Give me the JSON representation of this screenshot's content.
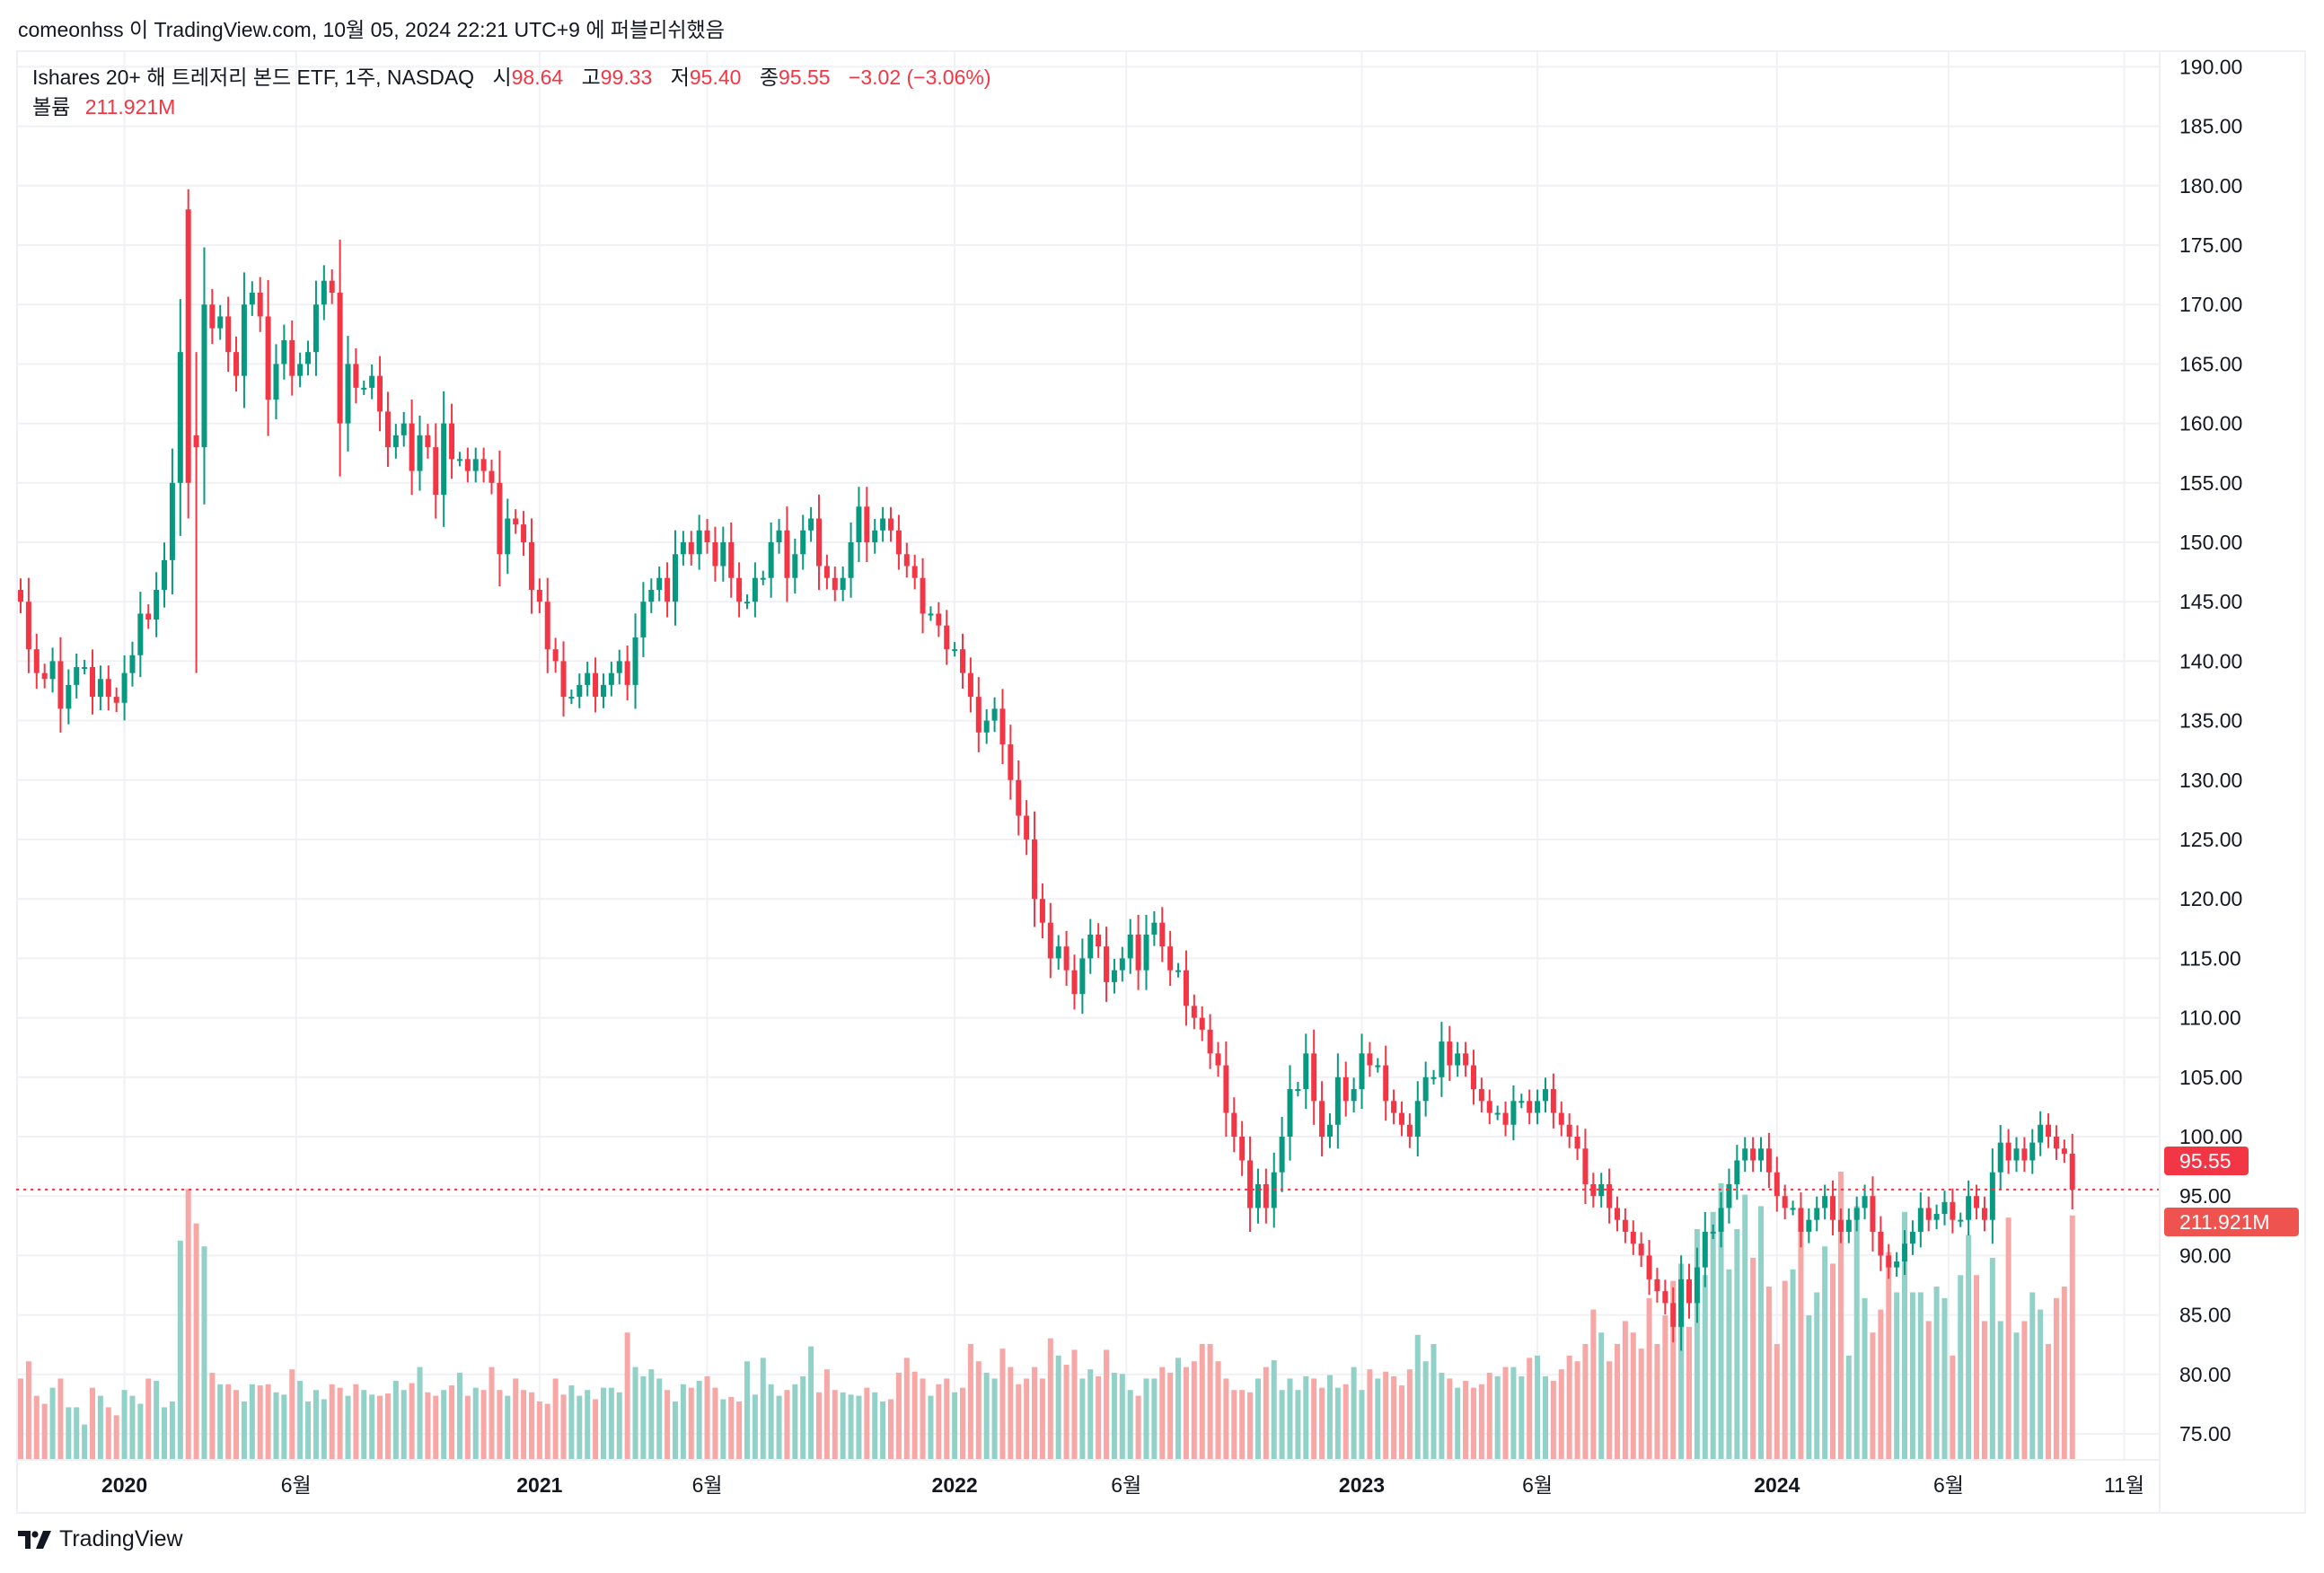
{
  "publish_line": "comeonhss 이 TradingView.com, 10월 05, 2024 22:21 UTC+9 에 퍼블리쉬했음",
  "legend": {
    "symbol": "Ishares 20+ 해 트레저리 본드 ETF, 1주, NASDAQ",
    "open_label": "시",
    "open": "98.64",
    "high_label": "고",
    "high": "99.33",
    "low_label": "저",
    "low": "95.40",
    "close_label": "종",
    "close": "95.55",
    "change": "−3.02 (−3.06%)",
    "volume_label": "볼륨",
    "volume": "211.921M"
  },
  "price_badge": "95.55",
  "volume_badge": "211.921M",
  "footer": {
    "brand": "TradingView"
  },
  "colors": {
    "up": "#089981",
    "down": "#f23645",
    "vol_up": "#92d1c8",
    "vol_down": "#f7a8a6",
    "grid": "#f0f1f4"
  },
  "chart_data": {
    "type": "candlestick",
    "interval": "1 week",
    "ylim": [
      72.5,
      192
    ],
    "yticks": [
      "190.00",
      "185.00",
      "180.00",
      "175.00",
      "170.00",
      "165.00",
      "160.00",
      "155.00",
      "150.00",
      "145.00",
      "140.00",
      "135.00",
      "130.00",
      "125.00",
      "120.00",
      "115.00",
      "110.00",
      "105.00",
      "100.00",
      "95.00",
      "90.00",
      "85.00",
      "80.00",
      "75.00"
    ],
    "xticks": [
      {
        "label": "2020",
        "bold": true,
        "week": 13
      },
      {
        "label": "6월",
        "bold": false,
        "week": 34.5
      },
      {
        "label": "2021",
        "bold": true,
        "week": 65
      },
      {
        "label": "6월",
        "bold": false,
        "week": 86
      },
      {
        "label": "2022",
        "bold": true,
        "week": 117
      },
      {
        "label": "6월",
        "bold": false,
        "week": 138.5
      },
      {
        "label": "2023",
        "bold": true,
        "week": 168
      },
      {
        "label": "6월",
        "bold": false,
        "week": 190
      },
      {
        "label": "2024",
        "bold": true,
        "week": 220
      },
      {
        "label": "6월",
        "bold": false,
        "week": 241.5
      },
      {
        "label": "11월",
        "bold": false,
        "week": 263.5
      }
    ],
    "first_open": 146,
    "close": [
      145,
      141,
      139,
      138.5,
      140,
      136,
      138,
      139.5,
      139.5,
      137,
      138.5,
      137,
      136.5,
      139,
      140.5,
      144,
      143.5,
      146,
      148.5,
      155,
      166,
      155,
      158,
      170,
      168,
      169,
      166,
      164,
      170,
      171,
      169,
      162,
      165,
      167,
      164,
      165,
      166,
      170,
      172,
      171,
      160,
      165,
      163,
      163,
      164,
      161,
      158,
      159,
      160,
      156,
      159,
      158,
      154,
      160,
      157,
      157,
      156,
      157,
      156,
      155,
      149,
      152,
      151.5,
      150,
      146,
      145,
      141,
      140,
      137,
      137,
      138,
      139,
      137,
      138,
      139,
      140,
      138,
      142,
      145,
      146,
      147,
      145,
      149,
      150,
      149,
      151,
      150,
      148,
      150,
      147,
      145,
      145,
      147,
      147,
      150,
      151,
      147,
      149,
      151,
      152,
      148,
      147,
      146,
      147,
      150,
      153,
      150,
      151,
      152,
      151,
      149,
      148,
      147,
      144,
      144,
      143,
      141,
      141,
      139,
      137,
      134,
      135,
      136,
      133,
      130,
      127,
      125,
      120,
      118,
      115,
      116,
      114,
      112,
      115,
      117,
      116,
      113,
      114,
      115,
      117,
      114,
      117,
      118,
      116,
      114,
      114,
      111,
      110,
      109,
      107,
      106,
      102,
      100,
      98,
      94,
      96,
      94,
      97,
      100,
      104,
      104,
      107,
      103,
      100,
      101,
      105,
      103,
      104,
      107,
      106,
      106,
      103,
      102,
      101,
      100,
      103,
      105,
      105,
      108,
      106,
      107,
      106,
      104,
      103,
      102,
      102,
      101,
      103,
      103,
      102,
      103,
      104,
      102,
      101,
      100,
      99,
      96,
      95,
      96,
      94,
      93,
      92,
      91,
      90,
      88,
      87,
      86,
      84,
      88,
      86,
      89,
      92,
      92,
      94,
      96,
      98,
      99,
      98,
      99,
      97,
      95,
      94,
      94,
      92,
      93,
      94,
      95,
      93,
      92,
      93,
      94,
      95,
      92,
      90,
      89,
      89.5,
      91,
      92,
      94,
      93,
      93.5,
      94.5,
      93,
      93,
      95,
      94,
      93,
      97,
      99.5,
      98,
      99,
      98,
      99.5,
      101,
      100,
      99,
      98.57,
      95.55
    ],
    "overrides": [
      {
        "week": 21,
        "open": 178,
        "high": 179.7,
        "low": 152
      },
      {
        "week": 22,
        "open": 159,
        "high": 166,
        "low": 139
      },
      {
        "week": 258,
        "open": 98.64,
        "high": 99.33,
        "low": 95.4
      }
    ],
    "volume_unit": "M",
    "volume": [
      70,
      85,
      55,
      48,
      62,
      70,
      45,
      45,
      30,
      62,
      55,
      45,
      38,
      60,
      55,
      48,
      70,
      68,
      45,
      50,
      190,
      235,
      205,
      185,
      75,
      65,
      65,
      60,
      50,
      65,
      64,
      65,
      58,
      56,
      78,
      68,
      50,
      60,
      52,
      65,
      62,
      55,
      65,
      60,
      56,
      55,
      57,
      68,
      60,
      66,
      80,
      58,
      55,
      60,
      64,
      75,
      55,
      62,
      60,
      80,
      60,
      55,
      70,
      60,
      58,
      50,
      48,
      70,
      56,
      64,
      55,
      60,
      52,
      62,
      62,
      58,
      110,
      80,
      72,
      78,
      70,
      60,
      50,
      65,
      62,
      68,
      72,
      62,
      52,
      54,
      50,
      85,
      56,
      88,
      65,
      55,
      60,
      65,
      72,
      98,
      58,
      78,
      60,
      58,
      56,
      55,
      62,
      58,
      50,
      52,
      75,
      88,
      76,
      70,
      55,
      65,
      70,
      58,
      62,
      100,
      85,
      75,
      70,
      96,
      80,
      65,
      70,
      80,
      70,
      105,
      90,
      82,
      95,
      70,
      78,
      72,
      95,
      75,
      74,
      60,
      55,
      70,
      70,
      80,
      75,
      88,
      80,
      85,
      100,
      100,
      85,
      70,
      60,
      60,
      58,
      70,
      80,
      86,
      60,
      70,
      60,
      72,
      70,
      62,
      73,
      62,
      65,
      80,
      60,
      78,
      70,
      76,
      72,
      64,
      78,
      108,
      85,
      100,
      75,
      70,
      62,
      68,
      62,
      65,
      75,
      72,
      80,
      80,
      72,
      88,
      90,
      72,
      68,
      78,
      90,
      85,
      100,
      130,
      110,
      85,
      100,
      120,
      110,
      96,
      140,
      100,
      125,
      155,
      170,
      115,
      200,
      160,
      215,
      240,
      165,
      200,
      230,
      175,
      220,
      150,
      100,
      155,
      165,
      200,
      125,
      145,
      185,
      170,
      250,
      90,
      220,
      140,
      110,
      130,
      180,
      145,
      215,
      145,
      145,
      120,
      150,
      140,
      90,
      160,
      195,
      160,
      120,
      175,
      120,
      210,
      110,
      120,
      145,
      130,
      100,
      140,
      150,
      211.921
    ]
  }
}
